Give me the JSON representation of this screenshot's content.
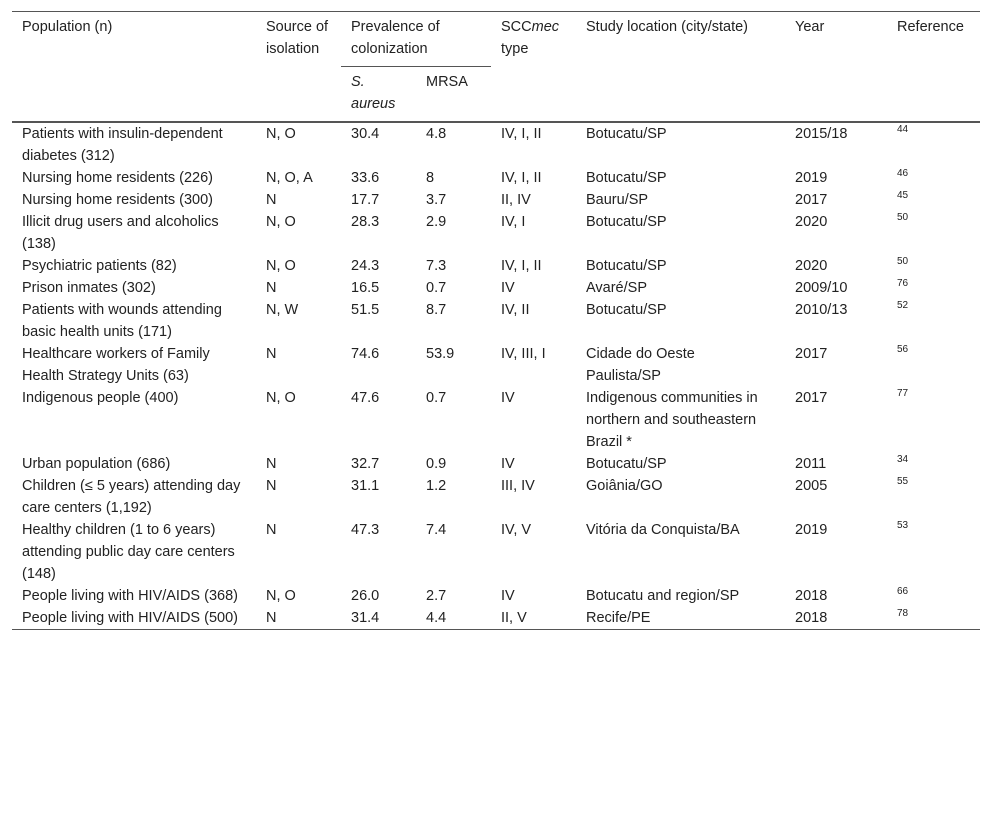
{
  "table": {
    "header": {
      "population": "Population (n)",
      "source": "Source of isolation",
      "prevalence": "Prevalence of colonization",
      "scc": {
        "prefix": "SCC",
        "italic": "mec",
        "suffix": "type"
      },
      "location": "Study location (city/state)",
      "year": "Year",
      "reference": "Reference",
      "saureus": "S. aureus",
      "mrsa": "MRSA"
    },
    "rows": [
      [
        "Patients with insulin-dependent diabetes (312)",
        "N, O",
        "30.4",
        "4.8",
        "IV, I, II",
        "Botucatu/SP",
        "2015/18",
        "44"
      ],
      [
        "Nursing home residents (226)",
        "N, O, A",
        "33.6",
        "8",
        "IV, I, II",
        "Botucatu/SP",
        "2019",
        "46"
      ],
      [
        "Nursing home residents (300)",
        "N",
        "17.7",
        "3.7",
        "II, IV",
        "Bauru/SP",
        "2017",
        "45"
      ],
      [
        "Illicit drug users and alcoholics (138)",
        "N, O",
        "28.3",
        "2.9",
        "IV, I",
        "Botucatu/SP",
        "2020",
        "50"
      ],
      [
        "Psychiatric patients (82)",
        "N, O",
        "24.3",
        "7.3",
        "IV, I, II",
        "Botucatu/SP",
        "2020",
        "50"
      ],
      [
        "Prison inmates (302)",
        "N",
        "16.5",
        "0.7",
        "IV",
        "Avaré/SP",
        "2009/10",
        "76"
      ],
      [
        "Patients with wounds attending basic health units (171)",
        "N, W",
        "51.5",
        "8.7",
        "IV, II",
        "Botucatu/SP",
        "2010/13",
        "52"
      ],
      [
        "Healthcare workers of Family Health Strategy Units (63)",
        "N",
        "74.6",
        "53.9",
        "IV, III, I",
        "Cidade do Oeste Paulista/SP",
        "2017",
        "56"
      ],
      [
        "Indigenous people (400)",
        "N, O",
        "47.6",
        "0.7",
        "IV",
        "Indigenous communities in northern and southeastern Brazil *",
        "2017",
        "77"
      ],
      [
        "Urban population (686)",
        "N",
        "32.7",
        "0.9",
        "IV",
        "Botucatu/SP",
        "2011",
        "34"
      ],
      [
        "Children (≤ 5 years) attending day care centers (1,192)",
        "N",
        "31.1",
        "1.2",
        "III, IV",
        "Goiânia/GO",
        "2005",
        "55"
      ],
      [
        "Healthy children (1 to 6 years) attending public day care centers (148)",
        "N",
        "47.3",
        "7.4",
        "IV, V",
        "Vitória da Conquista/BA",
        "2019",
        "53"
      ],
      [
        "People living with HIV/AIDS (368)",
        "N, O",
        "26.0",
        "2.7",
        "IV",
        "Botucatu and region/SP",
        "2018",
        "66"
      ],
      [
        "People living with HIV/AIDS (500)",
        "N",
        "31.4",
        "4.4",
        "II, V",
        "Recife/PE",
        "2018",
        "78"
      ]
    ]
  }
}
